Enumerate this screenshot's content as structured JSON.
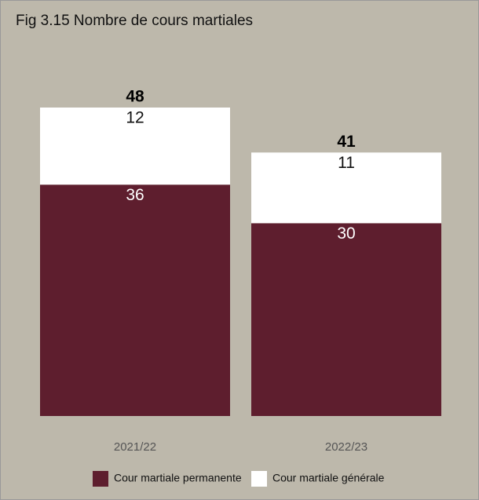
{
  "chart_data": {
    "type": "stacked_bar",
    "title": "Fig 3.15 Nombre de cours martiales",
    "categories": [
      "2021/22",
      "2022/23"
    ],
    "series": [
      {
        "name": "Cour martiale permanente",
        "color": "#5e1e2e",
        "values": [
          36,
          30
        ]
      },
      {
        "name": "Cour martiale générale",
        "color": "#ffffff",
        "values": [
          12,
          11
        ]
      }
    ],
    "totals": [
      48,
      41
    ],
    "legend": "bottom"
  }
}
